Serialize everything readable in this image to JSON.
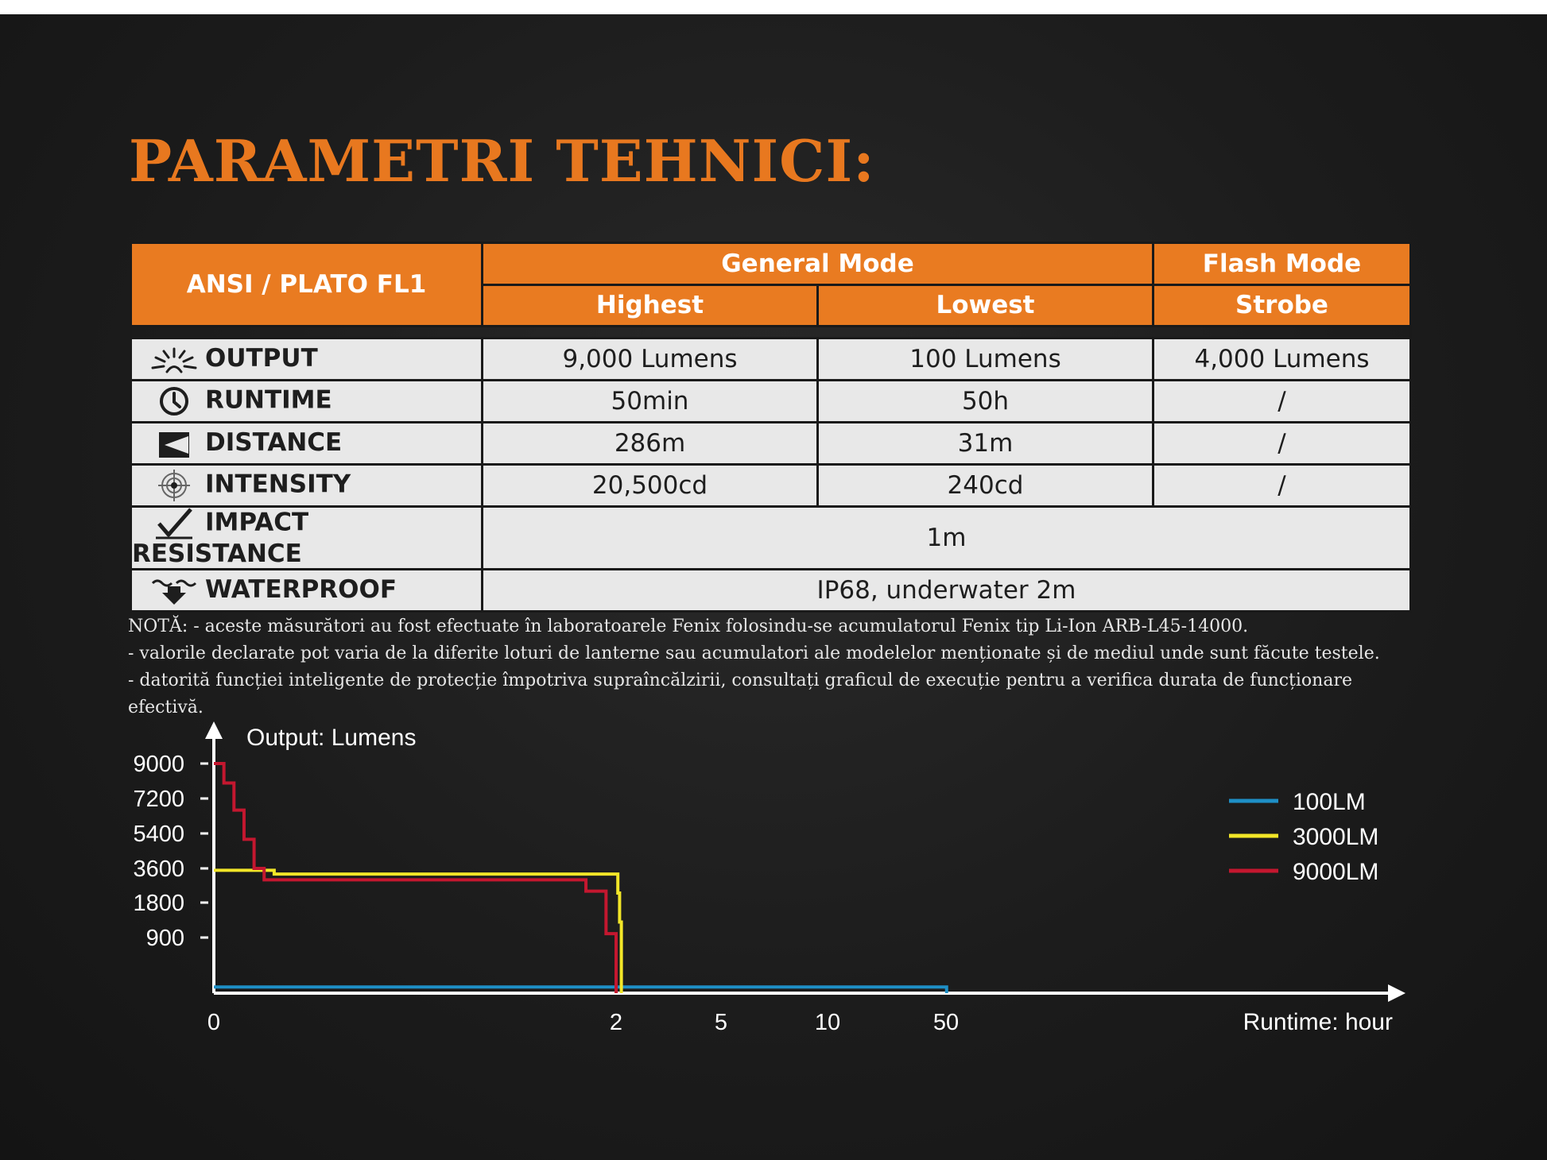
{
  "title": "PARAMETRI TEHNICI:",
  "table": {
    "header_label": "ANSI / PLATO FL1",
    "group_general": "General Mode",
    "group_flash": "Flash Mode",
    "col_highest": "Highest",
    "col_lowest": "Lowest",
    "col_strobe": "Strobe",
    "rows": [
      {
        "label": "OUTPUT",
        "icon": "light-burst-icon",
        "highest": "9,000 Lumens",
        "lowest": "100 Lumens",
        "strobe": "4,000 Lumens"
      },
      {
        "label": "RUNTIME",
        "icon": "clock-icon",
        "highest": "50min",
        "lowest": "50h",
        "strobe": "/"
      },
      {
        "label": "DISTANCE",
        "icon": "beam-distance-icon",
        "highest": "286m",
        "lowest": "31m",
        "strobe": "/"
      },
      {
        "label": "INTENSITY",
        "icon": "target-icon",
        "highest": "20,500cd",
        "lowest": "240cd",
        "strobe": "/"
      }
    ],
    "impact": {
      "label": "IMPACT RESISTANCE",
      "icon": "impact-check-icon",
      "value": "1m"
    },
    "waterproof": {
      "label": "WATERPROOF",
      "icon": "water-drop-icon",
      "value": "IP68, underwater 2m"
    }
  },
  "notes": [
    "NOTĂ: - aceste măsurători au fost efectuate în laboratoarele Fenix folosindu-se acumulatorul Fenix tip Li-Ion ARB-L45-14000.",
    " - valorile declarate pot varia de la diferite loturi de lanterne sau acumulatori ale modelelor menționate și de mediul unde sunt făcute testele.",
    "- datorită funcției inteligente de protecție împotriva supraîncălzirii, consultați graficul de execuție pentru a verifica durata de funcționare",
    "efectivă."
  ],
  "colors": {
    "accent": "#e97b21",
    "row_bg": "#e8e8e8",
    "line_100": "#1e8fc6",
    "line_3000": "#f2e628",
    "line_9000": "#c4172f"
  },
  "chart_data": {
    "type": "line",
    "ylabel": "Output: Lumens",
    "xlabel": "Runtime: hour",
    "y_ticks": [
      "9000",
      "7200",
      "5400",
      "3600",
      "1800",
      "900"
    ],
    "x_ticks": [
      "0",
      "2",
      "5",
      "10",
      "50"
    ],
    "x_scale": "non-linear (breaks at 2, 5, 10, 50 hours)",
    "legend_position": "right",
    "grid": false,
    "series": [
      {
        "name": "100LM",
        "color": "#1e8fc6",
        "points": [
          [
            0,
            100
          ],
          [
            50,
            100
          ],
          [
            50.2,
            0
          ]
        ]
      },
      {
        "name": "3000LM",
        "color": "#f2e628",
        "points": [
          [
            0,
            3500
          ],
          [
            0.2,
            3500
          ],
          [
            0.3,
            3300
          ],
          [
            2.0,
            3300
          ],
          [
            2.05,
            2300
          ],
          [
            2.1,
            1300
          ],
          [
            2.15,
            0
          ]
        ]
      },
      {
        "name": "9000LM",
        "color": "#c4172f",
        "points": [
          [
            0,
            9000
          ],
          [
            0.05,
            8000
          ],
          [
            0.1,
            6600
          ],
          [
            0.15,
            5100
          ],
          [
            0.2,
            3600
          ],
          [
            0.25,
            3000
          ],
          [
            1.8,
            3000
          ],
          [
            1.85,
            2400
          ],
          [
            1.95,
            1000
          ],
          [
            2.0,
            0
          ]
        ]
      }
    ]
  }
}
